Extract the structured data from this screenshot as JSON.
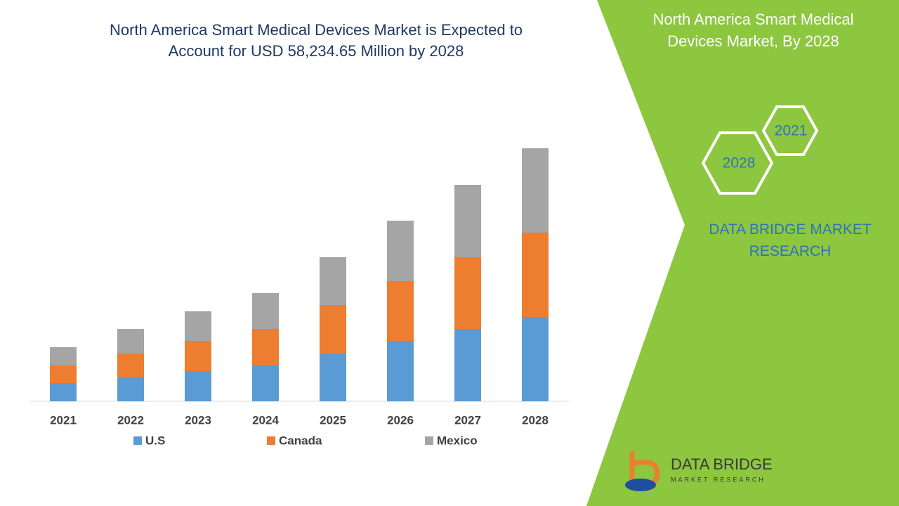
{
  "chart_data": {
    "type": "stacked-bar",
    "title": "North America Smart Medical Devices Market is Expected to Account for USD 58,234.65 Million by 2028",
    "categories": [
      "2021",
      "2022",
      "2023",
      "2024",
      "2025",
      "2026",
      "2027",
      "2028"
    ],
    "series": [
      {
        "name": "U.S",
        "color": "#5b9bd5",
        "values": [
          26,
          34,
          43,
          51,
          68,
          86,
          103,
          120
        ]
      },
      {
        "name": "Canada",
        "color": "#ed7d31",
        "values": [
          25,
          34,
          43,
          52,
          69,
          85,
          102,
          120
        ]
      },
      {
        "name": "Mexico",
        "color": "#a5a5a5",
        "values": [
          26,
          35,
          42,
          51,
          68,
          86,
          103,
          120
        ]
      }
    ],
    "ylim": [
      0,
      400
    ]
  },
  "sidebar": {
    "title": "North America Smart Medical Devices Market, By 2028",
    "hexagons": [
      "2021",
      "2028"
    ],
    "brand": "DATA BRIDGE MARKET RESEARCH"
  },
  "logo": {
    "name": "DATA BRIDGE",
    "tagline": "MARKET RESEARCH"
  }
}
